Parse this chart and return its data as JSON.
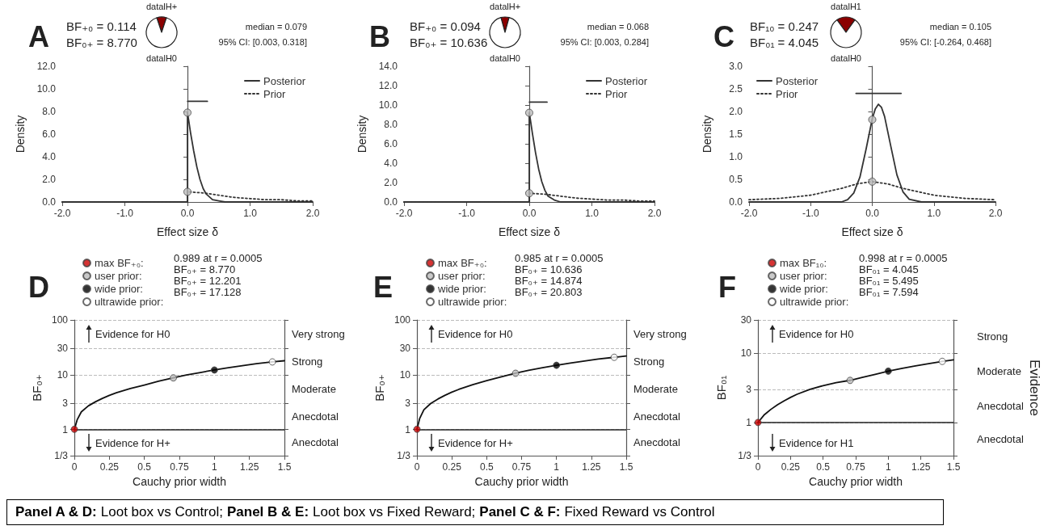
{
  "chart_data": [
    {
      "type": "line",
      "title": "A",
      "xlabel": "Effect size δ",
      "ylabel": "Density",
      "annotations": [
        "BF₊₀ = 0.114",
        "BF₀₊ = 8.770",
        "median = 0.079",
        "95% CI: [0.003, 0.318]"
      ],
      "legend": "top right",
      "xlim": [
        -2,
        2
      ],
      "xticks": [
        {
          "value": -2,
          "label": "-2.0"
        },
        {
          "value": -1,
          "label": "-1.0"
        },
        {
          "value": 0,
          "label": "0.0"
        },
        {
          "value": 1,
          "label": "1.0"
        },
        {
          "value": 2,
          "label": "2.0"
        }
      ],
      "ylim": [
        0,
        12
      ],
      "yticks": [
        {
          "value": 0,
          "label": "0.0"
        },
        {
          "value": 2,
          "label": "2.0"
        },
        {
          "value": 4,
          "label": "4.0"
        },
        {
          "value": 6,
          "label": "6.0"
        },
        {
          "value": 8,
          "label": "8.0"
        },
        {
          "value": 10,
          "label": "10.0"
        },
        {
          "value": 12,
          "label": "12.0"
        }
      ],
      "series": [
        {
          "name": "Posterior",
          "color": "#333333",
          "line_style": "solid",
          "marker": "none",
          "x": [
            -2,
            0,
            0,
            0.02,
            0.05,
            0.1,
            0.15,
            0.2,
            0.25,
            0.3,
            0.4,
            0.5,
            0.6,
            0.8,
            1,
            2
          ],
          "values": [
            0,
            0,
            7.9,
            7.2,
            6.1,
            4.5,
            3.1,
            2,
            1.2,
            0.7,
            0.2,
            0.1,
            0,
            0,
            0,
            0
          ]
        },
        {
          "name": "Prior",
          "color": "#333333",
          "line_style": "dotted",
          "marker": "none",
          "x": [
            -2,
            0,
            0,
            0.25,
            0.5,
            0.75,
            1,
            1.25,
            1.5,
            1.75,
            2
          ],
          "values": [
            0,
            0,
            0.9,
            0.8,
            0.6,
            0.4,
            0.3,
            0.2,
            0.2,
            0.1,
            0.1
          ]
        },
        {
          "type": "scatter",
          "color": "#bbbbbb",
          "marker": "circle",
          "x": [
            0
          ],
          "values": [
            7.9
          ]
        },
        {
          "type": "scatter",
          "color": "#bbbbbb",
          "marker": "circle",
          "x": [
            0
          ],
          "values": [
            0.9
          ]
        },
        {
          "type": "line",
          "color": "#333333",
          "marker": "none",
          "line_style": "solid",
          "x": [
            0.003,
            0.318
          ],
          "values": [
            8.9,
            8.9
          ]
        }
      ]
    },
    {
      "type": "pie",
      "categories": [
        "datalH+",
        "datalH0"
      ],
      "values": [
        10.2,
        89.8
      ],
      "colors": [
        "#8b0000",
        "#ffffff"
      ]
    },
    {
      "type": "line",
      "title": "B",
      "xlabel": "Effect size δ",
      "ylabel": "Density",
      "annotations": [
        "BF₊₀ = 0.094",
        "BF₀₊ = 10.636",
        "median = 0.068",
        "95% CI: [0.003, 0.284]"
      ],
      "legend": "top right",
      "xlim": [
        -2,
        2
      ],
      "xticks": [
        {
          "value": -2,
          "label": "-2.0"
        },
        {
          "value": -1,
          "label": "-1.0"
        },
        {
          "value": 0,
          "label": "0.0"
        },
        {
          "value": 1,
          "label": "1.0"
        },
        {
          "value": 2,
          "label": "2.0"
        }
      ],
      "ylim": [
        0,
        14
      ],
      "yticks": [
        {
          "value": 0,
          "label": "0.0"
        },
        {
          "value": 2,
          "label": "2.0"
        },
        {
          "value": 4,
          "label": "4.0"
        },
        {
          "value": 6,
          "label": "6.0"
        },
        {
          "value": 8,
          "label": "8.0"
        },
        {
          "value": 10,
          "label": "10.0"
        },
        {
          "value": 12,
          "label": "12.0"
        },
        {
          "value": 14,
          "label": "14.0"
        }
      ],
      "series": [
        {
          "name": "Posterior",
          "color": "#333333",
          "line_style": "solid",
          "marker": "none",
          "x": [
            -2,
            0,
            0,
            0.02,
            0.05,
            0.1,
            0.15,
            0.2,
            0.25,
            0.3,
            0.4,
            0.5,
            0.6,
            0.8,
            1,
            2
          ],
          "values": [
            0,
            0,
            9.2,
            8.4,
            7.1,
            5.1,
            3.4,
            2.1,
            1.2,
            0.6,
            0.2,
            0,
            0,
            0,
            0,
            0
          ]
        },
        {
          "name": "Prior",
          "color": "#333333",
          "line_style": "dotted",
          "marker": "none",
          "x": [
            -2,
            0,
            0,
            0.25,
            0.5,
            0.75,
            1,
            1.25,
            1.5,
            1.75,
            2
          ],
          "values": [
            0,
            0,
            0.9,
            0.8,
            0.6,
            0.4,
            0.3,
            0.2,
            0.2,
            0.1,
            0.1
          ]
        },
        {
          "type": "scatter",
          "color": "#bbbbbb",
          "marker": "circle",
          "x": [
            0
          ],
          "values": [
            9.2
          ]
        },
        {
          "type": "scatter",
          "color": "#bbbbbb",
          "marker": "circle",
          "x": [
            0
          ],
          "values": [
            0.9
          ]
        },
        {
          "type": "line",
          "color": "#333333",
          "marker": "none",
          "line_style": "solid",
          "x": [
            0.003,
            0.284
          ],
          "values": [
            10.3,
            10.3
          ]
        }
      ]
    },
    {
      "type": "pie",
      "categories": [
        "datalH+",
        "datalH0"
      ],
      "values": [
        8.6,
        91.4
      ],
      "colors": [
        "#8b0000",
        "#ffffff"
      ]
    },
    {
      "type": "line",
      "title": "C",
      "xlabel": "Effect size δ",
      "ylabel": "Density",
      "annotations": [
        "BF₁₀ = 0.247",
        "BF₀₁ = 4.045",
        "median = 0.105",
        "95% CI: [-0.264, 0.468]"
      ],
      "legend": "top left",
      "xlim": [
        -2,
        2
      ],
      "xticks": [
        {
          "value": -2,
          "label": "-2.0"
        },
        {
          "value": -1,
          "label": "-1.0"
        },
        {
          "value": 0,
          "label": "0.0"
        },
        {
          "value": 1,
          "label": "1.0"
        },
        {
          "value": 2,
          "label": "2.0"
        }
      ],
      "ylim": [
        0,
        3
      ],
      "yticks": [
        {
          "value": 0,
          "label": "0.0"
        },
        {
          "value": 0.5,
          "label": "0.5"
        },
        {
          "value": 1,
          "label": "1.0"
        },
        {
          "value": 1.5,
          "label": "1.5"
        },
        {
          "value": 2,
          "label": "2.0"
        },
        {
          "value": 2.5,
          "label": "2.5"
        },
        {
          "value": 3,
          "label": "3.0"
        }
      ],
      "series": [
        {
          "name": "Posterior",
          "color": "#333333",
          "line_style": "solid",
          "marker": "none",
          "x": [
            -2,
            -1,
            -0.6,
            -0.5,
            -0.4,
            -0.3,
            -0.2,
            -0.1,
            0,
            0.05,
            0.1,
            0.15,
            0.2,
            0.3,
            0.4,
            0.5,
            0.6,
            0.8,
            1,
            2
          ],
          "values": [
            0,
            0,
            0,
            0,
            0.05,
            0.2,
            0.55,
            1.17,
            1.84,
            2.06,
            2.16,
            2.09,
            1.89,
            1.24,
            0.6,
            0.22,
            0.06,
            0,
            0,
            0
          ]
        },
        {
          "name": "Prior",
          "color": "#333333",
          "line_style": "dotted",
          "marker": "none",
          "x": [
            -2,
            -1.5,
            -1,
            -0.5,
            -0.25,
            0,
            0.25,
            0.5,
            1,
            1.5,
            2
          ],
          "values": [
            0.05,
            0.08,
            0.15,
            0.3,
            0.4,
            0.45,
            0.4,
            0.3,
            0.15,
            0.08,
            0.05
          ]
        },
        {
          "type": "scatter",
          "color": "#bbbbbb",
          "marker": "circle",
          "x": [
            0
          ],
          "values": [
            1.82
          ]
        },
        {
          "type": "scatter",
          "color": "#bbbbbb",
          "marker": "circle",
          "x": [
            0
          ],
          "values": [
            0.45
          ]
        },
        {
          "type": "line",
          "color": "#333333",
          "marker": "none",
          "line_style": "solid",
          "x": [
            -0.264,
            0.468
          ],
          "values": [
            2.4,
            2.4
          ]
        }
      ]
    },
    {
      "type": "pie",
      "categories": [
        "datalH1",
        "datalH0"
      ],
      "values": [
        19.8,
        80.2
      ],
      "colors": [
        "#8b0000",
        "#ffffff"
      ]
    },
    {
      "type": "line",
      "title": "D",
      "xlabel": "Cauchy prior width",
      "ylabel": "BF₀₊",
      "log": "y",
      "grid": "y",
      "legend": "top",
      "annotations": [
        "0.989 at r = 0.0005",
        "BF₀₊ = 8.770",
        "BF₀₊ = 12.201",
        "BF₀₊ = 17.128",
        "Evidence for H0",
        "Evidence for H+",
        "Very strong",
        "Strong",
        "Moderate",
        "Anecdotal",
        "Anecdotal"
      ],
      "xlim": [
        0,
        1.5
      ],
      "xticks": [
        0,
        0.25,
        0.5,
        0.75,
        1,
        1.25,
        1.5
      ],
      "ylim": [
        0.3333,
        100
      ],
      "yticks": [
        {
          "value": 0.3333,
          "label": "1/3"
        },
        1,
        3,
        10,
        30,
        100
      ],
      "ref_lines": [
        {
          "axis": "y",
          "value": 1,
          "color": "#222222",
          "line_style": "solid"
        }
      ],
      "series": [
        {
          "color": "#111111",
          "marker": "none",
          "line_style": "solid",
          "x": [
            0,
            0.02,
            0.05,
            0.1,
            0.15,
            0.2,
            0.25,
            0.3,
            0.4,
            0.5,
            0.6,
            0.707,
            0.8,
            0.9,
            1,
            1.1,
            1.2,
            1.3,
            1.414,
            1.5
          ],
          "values": [
            1,
            1.5,
            2.1,
            2.7,
            3.2,
            3.7,
            4.2,
            4.7,
            5.6,
            6.5,
            7.6,
            8.77,
            9.9,
            11,
            12.2,
            13.4,
            14.6,
            15.9,
            17.13,
            18
          ]
        },
        {
          "name": "max BF₊₀:",
          "type": "scatter",
          "color": "#cc0000",
          "marker": "circle",
          "x": [
            0.0005
          ],
          "values": [
            1.011
          ]
        },
        {
          "name": "user prior:",
          "type": "scatter",
          "color": "#bbbbbb",
          "marker": "circle",
          "x": [
            0.707
          ],
          "values": [
            8.77
          ]
        },
        {
          "name": "wide prior:",
          "type": "scatter",
          "color": "#000000",
          "marker": "circle",
          "x": [
            1
          ],
          "values": [
            12.201
          ]
        },
        {
          "name": "ultrawide prior:",
          "type": "scatter",
          "color": "#ffffff",
          "marker": "circle",
          "x": [
            1.414
          ],
          "values": [
            17.128
          ]
        }
      ]
    },
    {
      "type": "line",
      "title": "E",
      "xlabel": "Cauchy prior width",
      "ylabel": "BF₀₊",
      "log": "y",
      "grid": "y",
      "legend": "top",
      "annotations": [
        "0.985 at r = 0.0005",
        "BF₀₊ = 10.636",
        "BF₀₊ = 14.874",
        "BF₀₊ = 20.803",
        "Evidence for H0",
        "Evidence for H+",
        "Very strong",
        "Strong",
        "Moderate",
        "Anecdotal",
        "Anecdotal"
      ],
      "xlim": [
        0,
        1.5
      ],
      "xticks": [
        0,
        0.25,
        0.5,
        0.75,
        1,
        1.25,
        1.5
      ],
      "ylim": [
        0.3333,
        100
      ],
      "yticks": [
        {
          "value": 0.3333,
          "label": "1/3"
        },
        1,
        3,
        10,
        30,
        100
      ],
      "ref_lines": [
        {
          "axis": "y",
          "value": 1,
          "color": "#222222",
          "line_style": "solid"
        }
      ],
      "series": [
        {
          "color": "#111111",
          "marker": "none",
          "line_style": "solid",
          "x": [
            0,
            0.02,
            0.05,
            0.1,
            0.15,
            0.2,
            0.25,
            0.3,
            0.4,
            0.5,
            0.6,
            0.707,
            0.8,
            0.9,
            1,
            1.1,
            1.2,
            1.3,
            1.414,
            1.5
          ],
          "values": [
            1,
            1.6,
            2.3,
            3,
            3.6,
            4.2,
            4.8,
            5.4,
            6.6,
            7.8,
            9.1,
            10.64,
            12,
            13.4,
            14.87,
            16.3,
            17.8,
            19.3,
            20.8,
            22
          ]
        },
        {
          "name": "max BF₊₀:",
          "type": "scatter",
          "color": "#cc0000",
          "marker": "circle",
          "x": [
            0.0005
          ],
          "values": [
            1.015
          ]
        },
        {
          "name": "user prior:",
          "type": "scatter",
          "color": "#bbbbbb",
          "marker": "circle",
          "x": [
            0.707
          ],
          "values": [
            10.636
          ]
        },
        {
          "name": "wide prior:",
          "type": "scatter",
          "color": "#000000",
          "marker": "circle",
          "x": [
            1
          ],
          "values": [
            14.874
          ]
        },
        {
          "name": "ultrawide prior:",
          "type": "scatter",
          "color": "#ffffff",
          "marker": "circle",
          "x": [
            1.414
          ],
          "values": [
            20.803
          ]
        }
      ]
    },
    {
      "type": "line",
      "title": "F",
      "xlabel": "Cauchy prior width",
      "ylabel": "BF₀₁",
      "y2label": "Evidence",
      "log": "y",
      "grid": "y",
      "legend": "top",
      "annotations": [
        "0.998 at r = 0.0005",
        "BF₀₁ = 4.045",
        "BF₀₁ = 5.495",
        "BF₀₁ = 7.594",
        "Evidence for H0",
        "Evidence for H1",
        "Strong",
        "Moderate",
        "Anecdotal",
        "Anecdotal"
      ],
      "xlim": [
        0,
        1.5
      ],
      "xticks": [
        0,
        0.25,
        0.5,
        0.75,
        1,
        1.25,
        1.5
      ],
      "ylim": [
        0.3333,
        30
      ],
      "yticks": [
        {
          "value": 0.3333,
          "label": "1/3"
        },
        1,
        3,
        10,
        30
      ],
      "ref_lines": [
        {
          "axis": "y",
          "value": 1,
          "color": "#222222",
          "line_style": "solid"
        }
      ],
      "series": [
        {
          "color": "#111111",
          "marker": "none",
          "line_style": "solid",
          "x": [
            0,
            0.05,
            0.1,
            0.15,
            0.2,
            0.25,
            0.3,
            0.4,
            0.5,
            0.6,
            0.707,
            0.8,
            0.9,
            1,
            1.1,
            1.2,
            1.3,
            1.414,
            1.5
          ],
          "values": [
            1,
            1.3,
            1.55,
            1.8,
            2.05,
            2.3,
            2.55,
            3,
            3.4,
            3.75,
            4.05,
            4.45,
            4.95,
            5.5,
            6,
            6.5,
            7,
            7.59,
            8
          ]
        },
        {
          "name": "max BF₁₀:",
          "type": "scatter",
          "color": "#cc0000",
          "marker": "circle",
          "x": [
            0.0005
          ],
          "values": [
            1.002
          ]
        },
        {
          "name": "user prior:",
          "type": "scatter",
          "color": "#bbbbbb",
          "marker": "circle",
          "x": [
            0.707
          ],
          "values": [
            4.045
          ]
        },
        {
          "name": "wide prior:",
          "type": "scatter",
          "color": "#000000",
          "marker": "circle",
          "x": [
            1
          ],
          "values": [
            5.495
          ]
        },
        {
          "name": "ultrawide prior:",
          "type": "scatter",
          "color": "#ffffff",
          "marker": "circle",
          "x": [
            1.414
          ],
          "values": [
            7.594
          ]
        }
      ]
    },
    {
      "type": "other",
      "annotations": [
        "Panel A & D:",
        "Loot box vs Control;",
        "Panel B & E:",
        "Loot box vs Fixed Reward;",
        "Panel C & F:",
        "Fixed Reward vs Control"
      ]
    }
  ]
}
